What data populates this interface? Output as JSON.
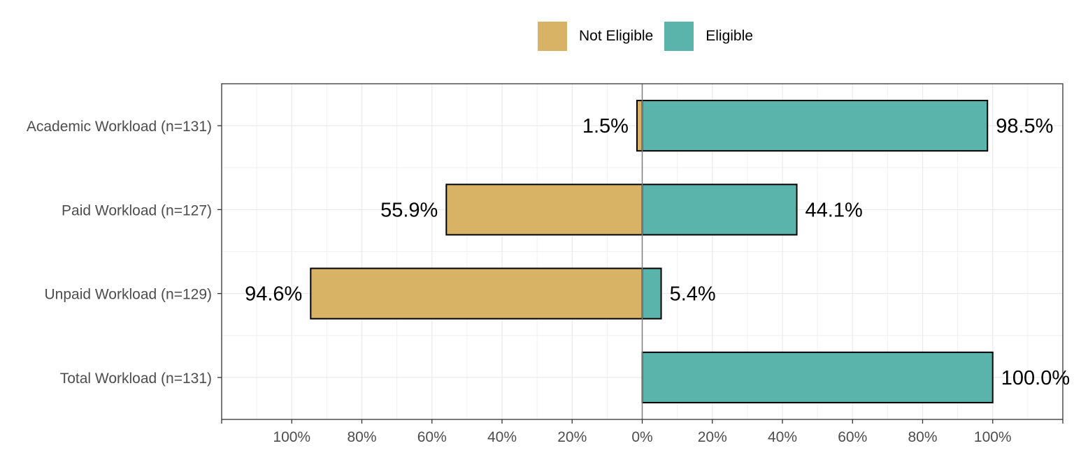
{
  "legend": {
    "position": "top",
    "items": [
      {
        "label": "Not Eligible",
        "color": "#D8B365"
      },
      {
        "label": "Eligible",
        "color": "#5AB4AC"
      }
    ]
  },
  "chart_data": {
    "type": "bar",
    "orientation": "horizontal-diverging",
    "title": "",
    "xlabel": "",
    "ylabel": "",
    "categories": [
      "Academic Workload (n=131)",
      "Paid Workload (n=127)",
      "Unpaid Workload (n=129)",
      "Total Workload (n=131)"
    ],
    "series": [
      {
        "name": "Not Eligible",
        "direction": "left",
        "color": "#D8B365",
        "values": [
          1.5,
          55.9,
          94.6,
          0
        ],
        "labels": [
          "1.5%",
          "55.9%",
          "94.6%",
          ""
        ]
      },
      {
        "name": "Eligible",
        "direction": "right",
        "color": "#5AB4AC",
        "values": [
          98.5,
          44.1,
          5.4,
          100.0
        ],
        "labels": [
          "98.5%",
          "44.1%",
          "5.4%",
          "100.0%"
        ]
      }
    ],
    "xlim": [
      -120,
      120
    ],
    "xticks": [
      -100,
      -80,
      -60,
      -40,
      -20,
      0,
      20,
      40,
      60,
      80,
      100
    ],
    "xtick_labels": [
      "100%",
      "80%",
      "60%",
      "40%",
      "20%",
      "0%",
      "20%",
      "40%",
      "60%",
      "80%",
      "100%"
    ],
    "grid": true
  }
}
